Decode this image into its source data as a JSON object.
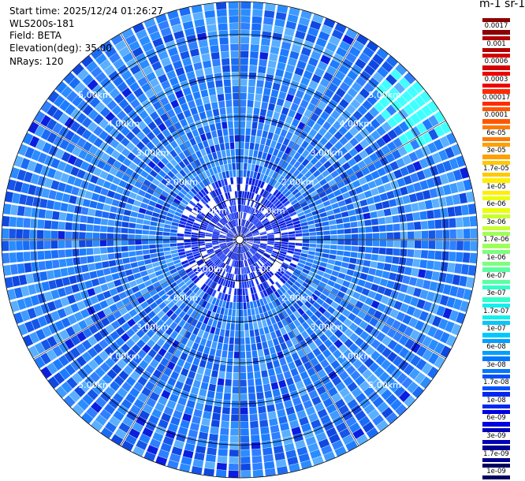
{
  "info": {
    "start_time": "Start time: 2025/12/24 01:26:27",
    "instrument": "WLS200s-181",
    "field": "Field: BETA",
    "elevation": "Elevation(deg): 35.00",
    "nrays": "NRays: 120"
  },
  "colorbar": {
    "unit_title": "m-1 sr-1",
    "labels": [
      "0.0017",
      "0.001",
      "0.0006",
      "0.0003",
      "0.00017",
      "0.0001",
      "6e-05",
      "3e-05",
      "1.7e-05",
      "1e-05",
      "6e-06",
      "3e-06",
      "1.7e-06",
      "1e-06",
      "6e-07",
      "3e-07",
      "1.7e-07",
      "1e-07",
      "6e-08",
      "3e-08",
      "1.7e-08",
      "1e-08",
      "6e-09",
      "3e-09",
      "1.7e-09",
      "1e-09"
    ],
    "colors": [
      "#8b0000",
      "#b00000",
      "#d50000",
      "#f00000",
      "#ff2a00",
      "#ff5500",
      "#ff7a00",
      "#ffa000",
      "#ffc800",
      "#ffee00",
      "#eaff0a",
      "#c8ff30",
      "#9fff5a",
      "#7dff7d",
      "#5affa0",
      "#30ffc8",
      "#10f0ee",
      "#00c8ff",
      "#00a0ff",
      "#0078ff",
      "#0050ff",
      "#0028f0",
      "#0000e0",
      "#0000b8",
      "#000090",
      "#000060"
    ]
  },
  "chart_data": {
    "type": "heatmap",
    "projection": "polar-ppi",
    "field": "BETA",
    "nrays": 120,
    "max_range_km": 5.8,
    "range_ring_labels": [
      "1.00km",
      "2.00km",
      "3.00km",
      "4.00km",
      "5.00km"
    ],
    "range_rings_km": [
      1,
      2,
      3,
      4,
      5
    ],
    "value_range": [
      1e-09,
      0.0017
    ],
    "dominant_value": 2e-08,
    "colormap": "jet"
  }
}
